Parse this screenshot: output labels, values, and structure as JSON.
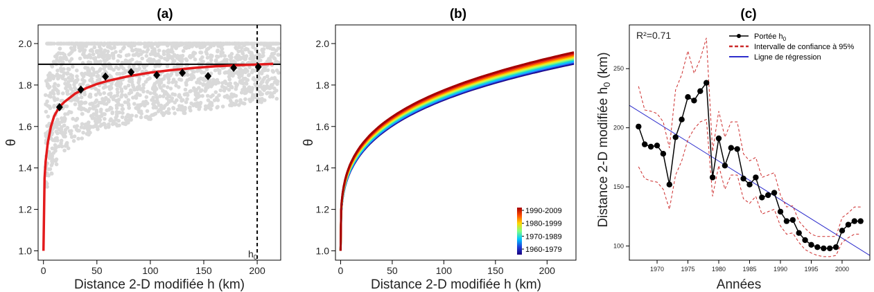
{
  "chart_data": [
    {
      "panel": "a",
      "type": "scatter",
      "title": "(a)",
      "xlabel": "Distance 2-D modifiée h (km)",
      "ylabel": "θ",
      "xlim": [
        -5,
        222
      ],
      "ylim": [
        0.955,
        2.09
      ],
      "xticks": [
        0,
        50,
        100,
        150,
        200
      ],
      "yticks": [
        1.0,
        1.2,
        1.4,
        1.6,
        1.8,
        2.0
      ],
      "hline": 1.9,
      "vline_x": 200,
      "vline_label": "h0",
      "cloud_color": "#d9d9d9",
      "fit_color": "#e31a1c",
      "fit_points": [
        [
          0,
          1.0
        ],
        [
          1,
          1.35
        ],
        [
          2,
          1.43
        ],
        [
          4,
          1.52
        ],
        [
          7,
          1.6
        ],
        [
          10,
          1.65
        ],
        [
          15,
          1.695
        ],
        [
          20,
          1.72
        ],
        [
          30,
          1.76
        ],
        [
          40,
          1.785
        ],
        [
          50,
          1.805
        ],
        [
          60,
          1.82
        ],
        [
          80,
          1.843
        ],
        [
          100,
          1.86
        ],
        [
          120,
          1.872
        ],
        [
          140,
          1.882
        ],
        [
          160,
          1.89
        ],
        [
          180,
          1.895
        ],
        [
          200,
          1.899
        ],
        [
          215,
          1.902
        ]
      ],
      "binned_means": {
        "x": [
          15,
          35,
          58,
          82,
          106,
          130,
          154,
          178,
          201
        ],
        "y": [
          1.693,
          1.778,
          1.841,
          1.862,
          1.848,
          1.859,
          1.843,
          1.883,
          1.887
        ]
      }
    },
    {
      "panel": "b",
      "type": "line",
      "title": "(b)",
      "xlabel": "Distance 2-D modifiée h (km)",
      "ylabel": "θ",
      "xlim": [
        -5,
        228
      ],
      "ylim": [
        0.955,
        2.09
      ],
      "xticks": [
        0,
        50,
        100,
        150,
        200
      ],
      "yticks": [
        1.0,
        1.2,
        1.4,
        1.6,
        1.8,
        2.0
      ],
      "legend_position": "bottom-right",
      "legend_colors": [
        "#a50000",
        "#ff4d00",
        "#ffd700",
        "#80ff80",
        "#00c8ff",
        "#1f3fd9",
        "#1a0080"
      ],
      "legend_labels": [
        "1990-2009",
        "1980-1999",
        "1970-1989",
        "1960-1979"
      ],
      "series_end_values": [
        1.96,
        1.955,
        1.95,
        1.945,
        1.94,
        1.935,
        1.93,
        1.925,
        1.92,
        1.915,
        1.91,
        1.905
      ],
      "series_colors": [
        "#a50000",
        "#d7191c",
        "#ff4d00",
        "#ff8c00",
        "#ffd700",
        "#d4f04a",
        "#80ff80",
        "#40e0b0",
        "#00c8ff",
        "#2b9bff",
        "#1f3fd9",
        "#1a0080"
      ]
    },
    {
      "panel": "c",
      "type": "line",
      "title": "(c)",
      "xlabel": "Années",
      "ylabel": "Distance 2-D modifiée h0 (km)",
      "annotation": "R²=0.71",
      "xlim": [
        1965.5,
        2004.5
      ],
      "ylim": [
        88,
        287
      ],
      "xticks": [
        1970,
        1975,
        1980,
        1985,
        1990,
        1995,
        2000
      ],
      "yticks": [
        100,
        150,
        200,
        250
      ],
      "legend": [
        "Portée h0",
        "Intervalle de confiance à 95%",
        "Ligne de régression"
      ],
      "legend_position": "top-right",
      "colors": {
        "main": "#000000",
        "ci": "#cc2a2a",
        "regression": "#2c2ccc"
      },
      "series": [
        {
          "name": "Portée h0",
          "x": [
            1967,
            1968,
            1969,
            1970,
            1971,
            1972,
            1973,
            1974,
            1975,
            1976,
            1977,
            1978,
            1979,
            1980,
            1981,
            1982,
            1983,
            1984,
            1985,
            1986,
            1987,
            1988,
            1989,
            1990,
            1991,
            1992,
            1993,
            1994,
            1995,
            1996,
            1997,
            1998,
            1999,
            2000,
            2001,
            2002,
            2003
          ],
          "values": [
            201,
            186,
            184,
            185,
            178,
            152,
            192,
            207,
            226,
            223,
            231,
            238,
            158,
            191,
            168,
            183,
            182,
            157,
            152,
            158,
            141,
            143,
            145,
            129,
            121,
            122,
            111,
            105,
            101,
            99,
            98,
            98,
            99,
            113,
            118,
            121,
            121
          ]
        },
        {
          "name": "Intervalle de confiance à 95% (haut)",
          "values": [
            235,
            215,
            214,
            212,
            205,
            183,
            232,
            245,
            265,
            246,
            258,
            276,
            180,
            214,
            192,
            205,
            205,
            178,
            172,
            175,
            158,
            160,
            162,
            143,
            133,
            134,
            121,
            115,
            110,
            108,
            108,
            108,
            108,
            124,
            128,
            133,
            133
          ]
        },
        {
          "name": "Intervalle de confiance à 95% (bas)",
          "values": [
            167,
            157,
            155,
            154,
            148,
            131,
            160,
            172,
            190,
            199,
            205,
            207,
            142,
            168,
            148,
            160,
            160,
            140,
            136,
            142,
            127,
            129,
            131,
            117,
            110,
            111,
            103,
            97,
            94,
            92,
            91,
            91,
            92,
            103,
            107,
            110,
            110
          ]
        }
      ],
      "regression": {
        "x": [
          1965.5,
          2004.5
        ],
        "y": [
          219,
          92
        ]
      }
    }
  ]
}
